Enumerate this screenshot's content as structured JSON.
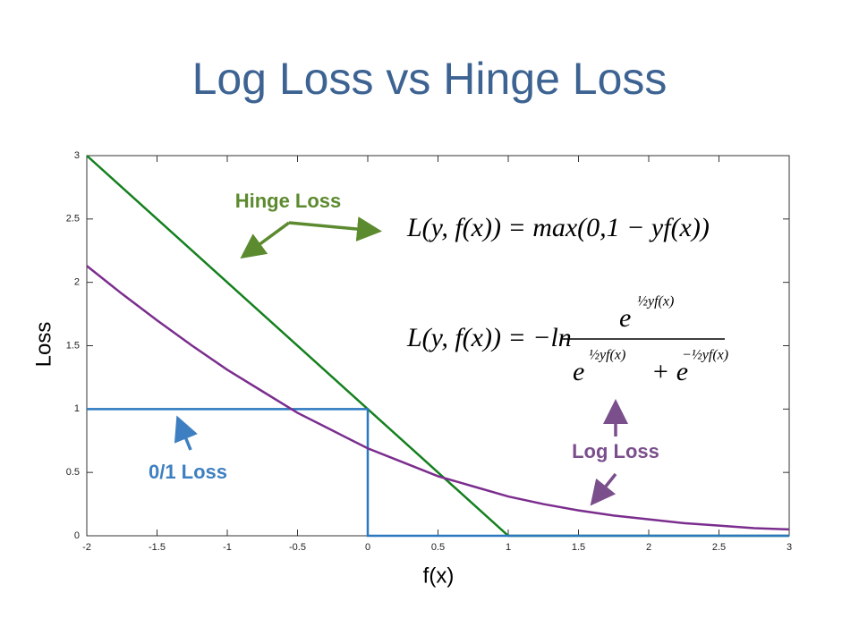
{
  "chart_data": {
    "type": "line",
    "title": "Log Loss vs Hinge Loss",
    "x_label": "f(x)",
    "y_label": "Loss",
    "xlim": [
      -2,
      3
    ],
    "ylim": [
      0,
      3
    ],
    "xticks": [
      -2,
      -1.5,
      -1,
      -0.5,
      0,
      0.5,
      1,
      1.5,
      2,
      2.5,
      3
    ],
    "yticks": [
      0,
      0.5,
      1,
      1.5,
      2,
      2.5,
      3
    ],
    "series": [
      {
        "name": "Hinge Loss",
        "color": "#14801e",
        "x": [
          -2,
          1,
          3
        ],
        "values": [
          3,
          0,
          0
        ]
      },
      {
        "name": "0/1 Loss",
        "color": "#2a78c0",
        "x": [
          -2,
          0,
          0,
          3
        ],
        "values": [
          1,
          1,
          0,
          0
        ]
      },
      {
        "name": "Log Loss",
        "color": "#7b2d8e",
        "x": [
          -2,
          -1.75,
          -1.5,
          -1.25,
          -1,
          -0.75,
          -0.5,
          -0.25,
          0,
          0.25,
          0.5,
          0.75,
          1,
          1.25,
          1.5,
          1.75,
          2,
          2.25,
          2.5,
          2.75,
          3
        ],
        "values": [
          2.13,
          1.91,
          1.7,
          1.5,
          1.31,
          1.14,
          0.97,
          0.83,
          0.69,
          0.58,
          0.47,
          0.39,
          0.31,
          0.25,
          0.2,
          0.16,
          0.13,
          0.1,
          0.08,
          0.06,
          0.05
        ]
      }
    ],
    "annotations": [
      {
        "text": "Hinge Loss",
        "color": "#5c8a2e"
      },
      {
        "text": "Log Loss",
        "color": "#7a4f8c"
      },
      {
        "text": "0/1 Loss",
        "color": "#3d7fc0"
      }
    ],
    "formulas": {
      "hinge": "L(y, f(x)) = max(0,1 − yf(x))",
      "log_lhs": "L(y, f(x)) = −ln",
      "log_numerator": "e",
      "log_numerator_exp": "½yf(x)",
      "log_denominator_1": "e",
      "log_denominator_1_exp": "½yf(x)",
      "log_denominator_2": "+ e",
      "log_denominator_2_exp": "−½yf(x)"
    }
  }
}
